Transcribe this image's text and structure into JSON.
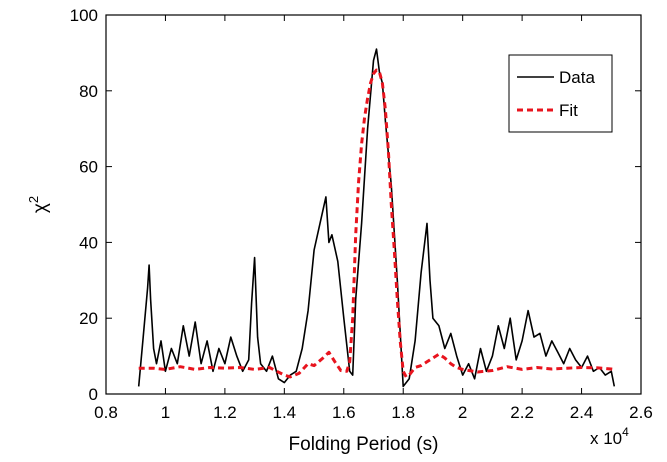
{
  "chart_data": {
    "type": "line",
    "xlabel": "Folding Period (s)",
    "ylabel": "χ",
    "ylabel_sup": "2",
    "x_multiplier_label": "x 10",
    "x_multiplier_exp": "4",
    "xlim": [
      0.8,
      2.6
    ],
    "ylim": [
      0,
      100
    ],
    "xticks": [
      0.8,
      1,
      1.2,
      1.4,
      1.6,
      1.8,
      2,
      2.2,
      2.4,
      2.6
    ],
    "xtick_labels": [
      "0.8",
      "1",
      "1.2",
      "1.4",
      "1.6",
      "1.8",
      "2",
      "2.2",
      "2.4",
      "2.6"
    ],
    "yticks": [
      0,
      20,
      40,
      60,
      80,
      100
    ],
    "ytick_labels": [
      "0",
      "20",
      "40",
      "60",
      "80",
      "100"
    ],
    "grid": false,
    "legend": {
      "placement": "top-right"
    },
    "series": [
      {
        "name": "Data",
        "color": "#000000",
        "style": "solid",
        "x": [
          0.91,
          0.925,
          0.94,
          0.945,
          0.95,
          0.96,
          0.97,
          0.985,
          1.0,
          1.02,
          1.04,
          1.06,
          1.08,
          1.1,
          1.12,
          1.14,
          1.16,
          1.18,
          1.2,
          1.22,
          1.24,
          1.26,
          1.28,
          1.29,
          1.3,
          1.31,
          1.32,
          1.34,
          1.36,
          1.38,
          1.4,
          1.42,
          1.44,
          1.46,
          1.48,
          1.5,
          1.52,
          1.54,
          1.55,
          1.56,
          1.58,
          1.6,
          1.62,
          1.63,
          1.64,
          1.66,
          1.68,
          1.7,
          1.71,
          1.72,
          1.73,
          1.74,
          1.76,
          1.78,
          1.8,
          1.82,
          1.84,
          1.86,
          1.88,
          1.89,
          1.9,
          1.92,
          1.94,
          1.96,
          1.98,
          2.0,
          2.02,
          2.04,
          2.06,
          2.08,
          2.1,
          2.12,
          2.14,
          2.16,
          2.18,
          2.2,
          2.22,
          2.24,
          2.26,
          2.28,
          2.3,
          2.32,
          2.34,
          2.36,
          2.38,
          2.4,
          2.42,
          2.44,
          2.46,
          2.48,
          2.5,
          2.51
        ],
        "y": [
          2,
          15,
          28,
          34,
          25,
          12,
          8,
          14,
          6,
          12,
          8,
          18,
          10,
          19,
          8,
          14,
          6,
          12,
          8,
          15,
          10,
          6,
          9,
          24,
          36,
          15,
          8,
          6,
          10,
          4,
          3,
          5,
          6,
          12,
          22,
          38,
          45,
          52,
          40,
          42,
          35,
          20,
          6,
          5,
          25,
          45,
          70,
          88,
          91,
          85,
          82,
          72,
          55,
          30,
          2,
          4,
          14,
          32,
          45,
          30,
          20,
          18,
          12,
          16,
          10,
          5,
          8,
          4,
          12,
          6,
          10,
          18,
          12,
          20,
          9,
          14,
          22,
          15,
          16,
          10,
          14,
          11,
          8,
          12,
          9,
          7,
          10,
          6,
          7,
          5,
          6,
          2
        ]
      },
      {
        "name": "Fit",
        "color": "#e8141e",
        "style": "dashed",
        "x": [
          0.91,
          0.96,
          1.0,
          1.05,
          1.1,
          1.15,
          1.2,
          1.25,
          1.3,
          1.35,
          1.4,
          1.42,
          1.45,
          1.48,
          1.5,
          1.53,
          1.55,
          1.57,
          1.59,
          1.61,
          1.62,
          1.63,
          1.64,
          1.65,
          1.66,
          1.67,
          1.68,
          1.69,
          1.7,
          1.71,
          1.72,
          1.73,
          1.74,
          1.75,
          1.76,
          1.77,
          1.78,
          1.79,
          1.8,
          1.81,
          1.82,
          1.84,
          1.86,
          1.88,
          1.9,
          1.92,
          1.94,
          1.96,
          1.98,
          2.0,
          2.05,
          2.1,
          2.15,
          2.2,
          2.25,
          2.3,
          2.35,
          2.4,
          2.45,
          2.5,
          2.51
        ],
        "y": [
          6.8,
          6.8,
          6.5,
          7.2,
          6.5,
          7.0,
          6.8,
          7.0,
          6.5,
          7.0,
          5.0,
          4.5,
          5.5,
          8.0,
          7.5,
          9.5,
          11.0,
          8.5,
          6.2,
          6.0,
          8.5,
          20.0,
          42.0,
          56.0,
          66.0,
          73.0,
          78.0,
          82.0,
          84.5,
          85.5,
          85.0,
          82.0,
          75.0,
          64.0,
          50.0,
          38.0,
          25.0,
          14.0,
          6.0,
          4.5,
          5.0,
          7.0,
          7.5,
          8.5,
          9.5,
          10.5,
          9.5,
          8.0,
          7.0,
          6.5,
          5.8,
          6.2,
          7.2,
          6.5,
          7.0,
          6.6,
          6.8,
          7.0,
          6.9,
          6.6,
          6.5
        ]
      }
    ]
  }
}
